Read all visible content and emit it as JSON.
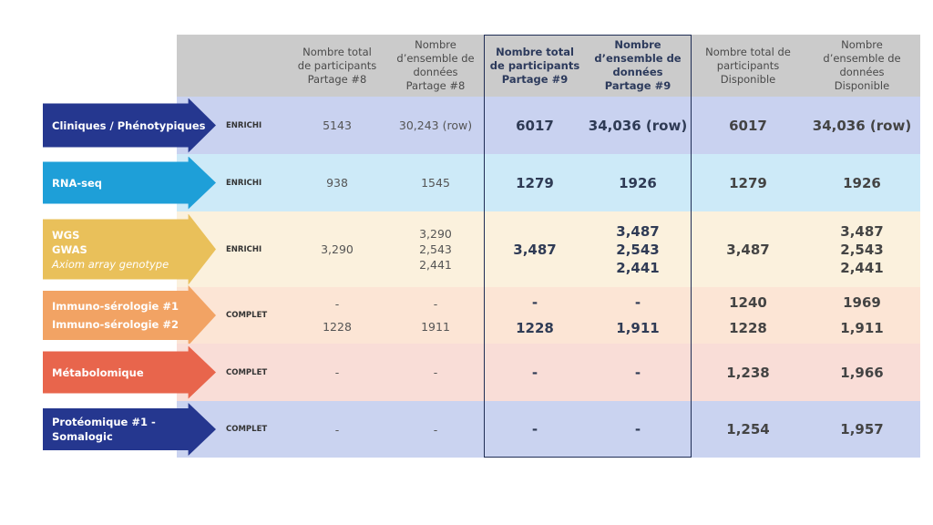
{
  "colors": {
    "header_bg": "#cbcbcb",
    "frame": "#1f2d55"
  },
  "headers": [
    {
      "text": "Nombre total\nde participants\nPartage #8",
      "bold": false
    },
    {
      "text": "Nombre\nd’ensemble de\ndonnées\nPartage #8",
      "bold": false
    },
    {
      "text": "Nombre total\nde participants\nPartage #9",
      "bold": true
    },
    {
      "text": "Nombre\nd’ensemble de\ndonnées\nPartage #9",
      "bold": true
    },
    {
      "text": "Nombre total de\nparticipants\nDisponible",
      "bold": false
    },
    {
      "text": "Nombre\nd’ensemble de\ndonnées\nDisponible",
      "bold": false
    }
  ],
  "rows": [
    {
      "labels": [
        "Cliniques / Phénotypiques"
      ],
      "italic_last": false,
      "tag": "ENRICHI",
      "arrow_color": "#25378f",
      "bg": "#c9d2f0",
      "p8_total": [
        "5143"
      ],
      "p8_sets": [
        "30,243 (row)"
      ],
      "p9_total": [
        "6017"
      ],
      "p9_sets": [
        "34,036 (row)"
      ],
      "d_total": [
        "6017"
      ],
      "d_sets": [
        "34,036 (row)"
      ]
    },
    {
      "labels": [
        "RNA-seq"
      ],
      "italic_last": false,
      "tag": "ENRICHI",
      "arrow_color": "#1e9fd8",
      "bg": "#cdeaf8",
      "p8_total": [
        "938"
      ],
      "p8_sets": [
        "1545"
      ],
      "p9_total": [
        "1279"
      ],
      "p9_sets": [
        "1926"
      ],
      "d_total": [
        "1279"
      ],
      "d_sets": [
        "1926"
      ]
    },
    {
      "labels": [
        "WGS",
        "GWAS",
        "Axiom array genotype"
      ],
      "italic_last": true,
      "tag": "ENRICHI",
      "arrow_color": "#e9c05a",
      "bg": "#fbf1dd",
      "p8_total": [
        "3,290"
      ],
      "p8_sets": [
        "3,290",
        "2,543",
        "2,441"
      ],
      "p9_total": [
        "3,487"
      ],
      "p9_sets": [
        "3,487",
        "2,543",
        "2,441"
      ],
      "d_total": [
        "3,487"
      ],
      "d_sets": [
        "3,487",
        "2,543",
        "2,441"
      ]
    },
    {
      "labels": [
        "Immuno-sérologie #1",
        "Immuno-sérologie #2"
      ],
      "italic_last": false,
      "tag": "COMPLET",
      "arrow_color": "#f2a364",
      "bg": "#fce5d5",
      "p8_total": [
        "-",
        "1228"
      ],
      "p8_sets": [
        "-",
        "1911"
      ],
      "p9_total": [
        "-",
        "1228"
      ],
      "p9_sets": [
        "-",
        "1,911"
      ],
      "d_total": [
        "1240",
        "1228"
      ],
      "d_sets": [
        "1969",
        "1,911"
      ]
    },
    {
      "labels": [
        "Métabolomique"
      ],
      "italic_last": false,
      "tag": "COMPLET",
      "arrow_color": "#e8654c",
      "bg": "#f9ddd7",
      "p8_total": [
        "-"
      ],
      "p8_sets": [
        "-"
      ],
      "p9_total": [
        "-"
      ],
      "p9_sets": [
        "-"
      ],
      "d_total": [
        "1,238"
      ],
      "d_sets": [
        "1,966"
      ]
    },
    {
      "labels": [
        "Protéomique #1 - Somalogic"
      ],
      "italic_last": false,
      "tag": "COMPLET",
      "arrow_color": "#25378f",
      "bg": "#cad3f0",
      "p8_total": [
        "-"
      ],
      "p8_sets": [
        "-"
      ],
      "p9_total": [
        "-"
      ],
      "p9_sets": [
        "-"
      ],
      "d_total": [
        "1,254"
      ],
      "d_sets": [
        "1,957"
      ]
    }
  ]
}
